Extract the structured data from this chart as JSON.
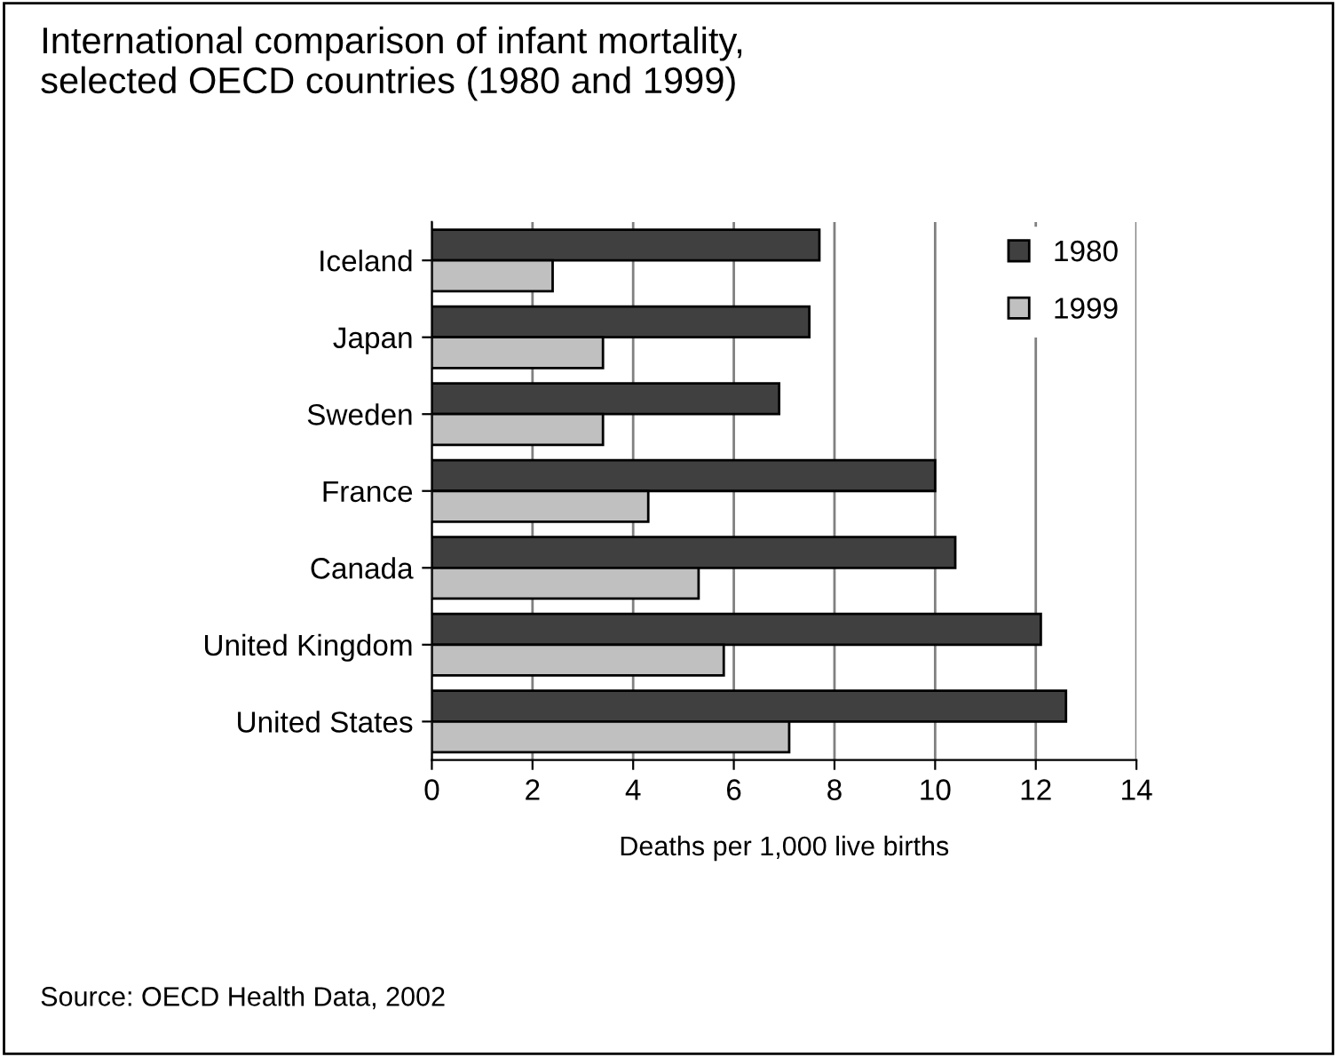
{
  "chart_data": {
    "type": "bar",
    "orientation": "horizontal",
    "title": "International comparison of infant mortality,\nselected OECD countries (1980 and 1999)",
    "xlabel": "Deaths per 1,000 live births",
    "categories": [
      "Iceland",
      "Japan",
      "Sweden",
      "France",
      "Canada",
      "United Kingdom",
      "United States"
    ],
    "series": [
      {
        "name": "1980",
        "color": "#404040",
        "values": [
          7.7,
          7.5,
          6.9,
          10.0,
          10.4,
          12.1,
          12.6
        ]
      },
      {
        "name": "1999",
        "color": "#c0c0c0",
        "values": [
          2.4,
          3.4,
          3.4,
          4.3,
          5.3,
          5.8,
          7.1
        ]
      }
    ],
    "xlim": [
      0,
      14
    ],
    "xticks": [
      0,
      2,
      4,
      6,
      8,
      10,
      12,
      14
    ],
    "grid": "x",
    "legend": "top right",
    "annotations": [
      "Source: OECD Health Data, 2002"
    ]
  }
}
